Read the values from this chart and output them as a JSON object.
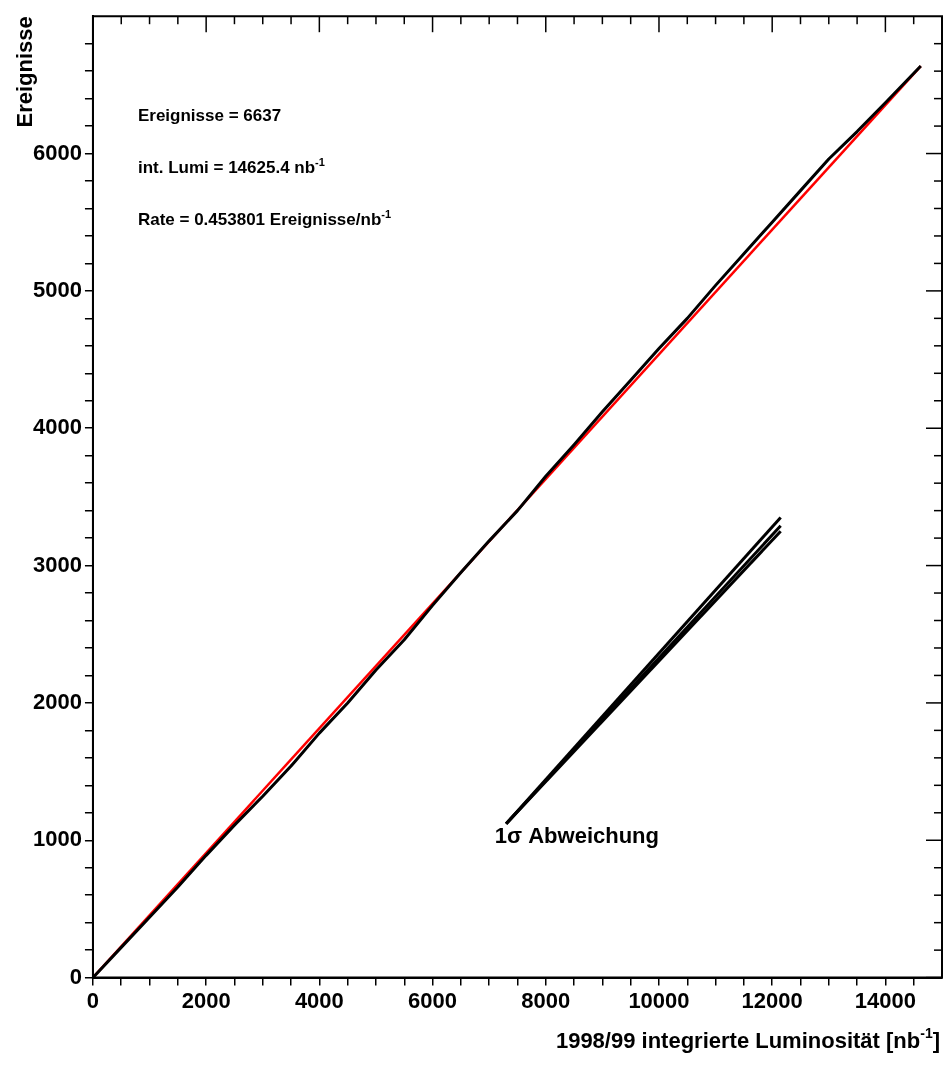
{
  "chart_data": {
    "type": "line",
    "xlabel": "1998/99 integrierte Luminosität [nb$^{-1}$]",
    "ylabel": "Ereignisse",
    "xlim": [
      0,
      15000
    ],
    "ylim": [
      0,
      7000
    ],
    "xticks": [
      0,
      {
        "value": 500,
        "label": null
      },
      {
        "value": 1000,
        "label": null
      },
      {
        "value": 1500,
        "label": null
      },
      2000,
      {
        "value": 2500,
        "label": null
      },
      {
        "value": 3000,
        "label": null
      },
      {
        "value": 3500,
        "label": null
      },
      4000,
      {
        "value": 4500,
        "label": null
      },
      {
        "value": 5000,
        "label": null
      },
      {
        "value": 5500,
        "label": null
      },
      6000,
      {
        "value": 6500,
        "label": null
      },
      {
        "value": 7000,
        "label": null
      },
      {
        "value": 7500,
        "label": null
      },
      8000,
      {
        "value": 8500,
        "label": null
      },
      {
        "value": 9000,
        "label": null
      },
      {
        "value": 9500,
        "label": null
      },
      10000,
      {
        "value": 10500,
        "label": null
      },
      {
        "value": 11000,
        "label": null
      },
      {
        "value": 11500,
        "label": null
      },
      12000,
      {
        "value": 12500,
        "label": null
      },
      {
        "value": 13000,
        "label": null
      },
      {
        "value": 13500,
        "label": null
      },
      14000,
      {
        "value": 14500,
        "label": null
      }
    ],
    "yticks": [
      0,
      {
        "value": 200,
        "label": null
      },
      {
        "value": 400,
        "label": null
      },
      {
        "value": 600,
        "label": null
      },
      {
        "value": 800,
        "label": null
      },
      1000,
      {
        "value": 1200,
        "label": null
      },
      {
        "value": 1400,
        "label": null
      },
      {
        "value": 1600,
        "label": null
      },
      {
        "value": 1800,
        "label": null
      },
      2000,
      {
        "value": 2200,
        "label": null
      },
      {
        "value": 2400,
        "label": null
      },
      {
        "value": 2600,
        "label": null
      },
      {
        "value": 2800,
        "label": null
      },
      3000,
      {
        "value": 3200,
        "label": null
      },
      {
        "value": 3400,
        "label": null
      },
      {
        "value": 3600,
        "label": null
      },
      {
        "value": 3800,
        "label": null
      },
      4000,
      {
        "value": 4200,
        "label": null
      },
      {
        "value": 4400,
        "label": null
      },
      {
        "value": 4600,
        "label": null
      },
      {
        "value": 4800,
        "label": null
      },
      5000,
      {
        "value": 5200,
        "label": null
      },
      {
        "value": 5400,
        "label": null
      },
      {
        "value": 5600,
        "label": null
      },
      {
        "value": 5800,
        "label": null
      },
      6000,
      {
        "value": 6200,
        "label": null
      },
      {
        "value": 6400,
        "label": null
      },
      {
        "value": 6600,
        "label": null
      },
      {
        "value": 6800,
        "label": null
      }
    ],
    "grid": false,
    "legend": false,
    "marker": "none",
    "line_style": "solid",
    "series": [
      {
        "type": "line",
        "color": "#000000",
        "x": [
          0,
          500,
          1000,
          1500,
          2000,
          2500,
          3000,
          3500,
          4000,
          4500,
          5000,
          5500,
          6000,
          6500,
          7000,
          7500,
          8000,
          8500,
          9000,
          9500,
          10000,
          10500,
          11000,
          11500,
          12000,
          12500,
          13000,
          13500,
          14000,
          14625.4
        ],
        "values": [
          0,
          220,
          440,
          660,
          890,
          1110,
          1320,
          1540,
          1780,
          2000,
          2240,
          2460,
          2710,
          2950,
          3180,
          3400,
          3650,
          3880,
          4120,
          4350,
          4580,
          4800,
          5040,
          5270,
          5500,
          5730,
          5960,
          6160,
          6370,
          6637
        ]
      },
      {
        "type": "line",
        "color": "#ff0000",
        "x": [
          0,
          14625.4
        ],
        "values": [
          0,
          6637
        ]
      },
      {
        "type": "line",
        "color": "#000000",
        "x": [
          7300,
          12150
        ],
        "values": [
          1120,
          3350
        ]
      },
      {
        "type": "line",
        "color": "#000000",
        "x": [
          7300,
          12150
        ],
        "values": [
          1120,
          3290
        ]
      },
      {
        "type": "line",
        "color": "#000000",
        "x": [
          7300,
          12150
        ],
        "values": [
          1120,
          3250
        ]
      }
    ],
    "annotations": [
      "Ereignisse = 6637",
      "int. Lumi = 14625.4 nb$^{-1}$",
      "Rate = 0.453801 Ereignisse/nb$^{-1}$",
      "1σ Abweichung"
    ]
  }
}
